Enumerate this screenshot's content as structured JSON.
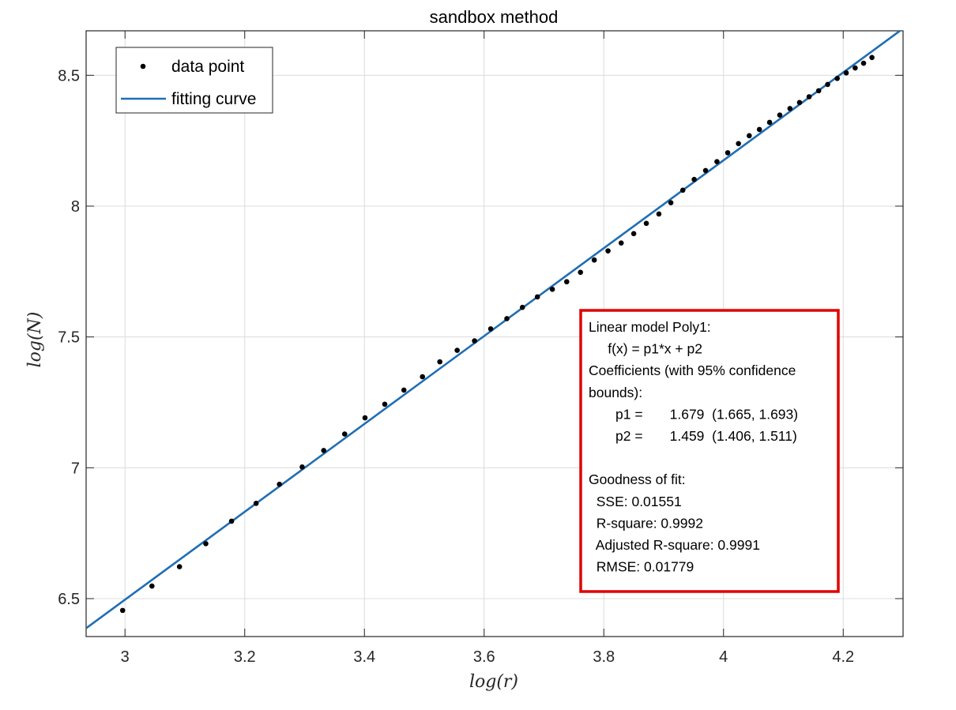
{
  "chart_data": {
    "type": "scatter",
    "title": "sandbox method",
    "xlabel": "log(r)",
    "ylabel": "log(N)",
    "xlim": [
      2.935,
      4.3
    ],
    "ylim": [
      6.355,
      8.67
    ],
    "xticks": [
      3,
      3.2,
      3.4,
      3.6,
      3.8,
      4,
      4.2
    ],
    "yticks": [
      6.5,
      7,
      7.5,
      8,
      8.5
    ],
    "grid": true,
    "legend_position": "top-left",
    "legend": [
      {
        "label": "data point",
        "marker": "dot",
        "color": "#000000"
      },
      {
        "label": "fitting curve",
        "marker": "line",
        "color": "#1f6eb4"
      }
    ],
    "series": [
      {
        "name": "data point",
        "style": "marker",
        "color": "#000000",
        "points": [
          [
            2.996,
            6.455
          ],
          [
            3.045,
            6.548
          ],
          [
            3.091,
            6.622
          ],
          [
            3.135,
            6.71
          ],
          [
            3.178,
            6.796
          ],
          [
            3.219,
            6.864
          ],
          [
            3.258,
            6.937
          ],
          [
            3.296,
            7.003
          ],
          [
            3.332,
            7.066
          ],
          [
            3.367,
            7.129
          ],
          [
            3.401,
            7.191
          ],
          [
            3.434,
            7.243
          ],
          [
            3.466,
            7.297
          ],
          [
            3.497,
            7.348
          ],
          [
            3.526,
            7.405
          ],
          [
            3.555,
            7.449
          ],
          [
            3.584,
            7.485
          ],
          [
            3.611,
            7.531
          ],
          [
            3.638,
            7.57
          ],
          [
            3.664,
            7.613
          ],
          [
            3.689,
            7.653
          ],
          [
            3.714,
            7.682
          ],
          [
            3.738,
            7.711
          ],
          [
            3.761,
            7.747
          ],
          [
            3.784,
            7.794
          ],
          [
            3.807,
            7.829
          ],
          [
            3.829,
            7.859
          ],
          [
            3.85,
            7.895
          ],
          [
            3.871,
            7.934
          ],
          [
            3.892,
            7.97
          ],
          [
            3.912,
            8.013
          ],
          [
            3.932,
            8.061
          ],
          [
            3.951,
            8.102
          ],
          [
            3.97,
            8.136
          ],
          [
            3.989,
            8.17
          ],
          [
            4.007,
            8.204
          ],
          [
            4.025,
            8.239
          ],
          [
            4.043,
            8.269
          ],
          [
            4.06,
            8.293
          ],
          [
            4.077,
            8.32
          ],
          [
            4.094,
            8.348
          ],
          [
            4.111,
            8.373
          ],
          [
            4.127,
            8.396
          ],
          [
            4.143,
            8.418
          ],
          [
            4.159,
            8.441
          ],
          [
            4.174,
            8.465
          ],
          [
            4.19,
            8.488
          ],
          [
            4.205,
            8.509
          ],
          [
            4.22,
            8.528
          ],
          [
            4.234,
            8.546
          ],
          [
            4.248,
            8.568
          ]
        ]
      },
      {
        "name": "fitting curve",
        "style": "line",
        "color": "#1f6eb4",
        "slope": 1.679,
        "intercept": 1.459,
        "x_range": [
          2.935,
          4.3
        ]
      }
    ],
    "annotation": {
      "border_color": "#e00000",
      "lines": [
        "Linear model Poly1:",
        "     f(x) = p1*x + p2",
        "Coefficients (with 95% confidence",
        "bounds):",
        "       p1 =       1.679  (1.665, 1.693)",
        "       p2 =       1.459  (1.406, 1.511)",
        "",
        "Goodness of fit:",
        "  SSE: 0.01551",
        "  R-square: 0.9992",
        "  Adjusted R-square: 0.9991",
        "  RMSE: 0.01779"
      ]
    }
  }
}
